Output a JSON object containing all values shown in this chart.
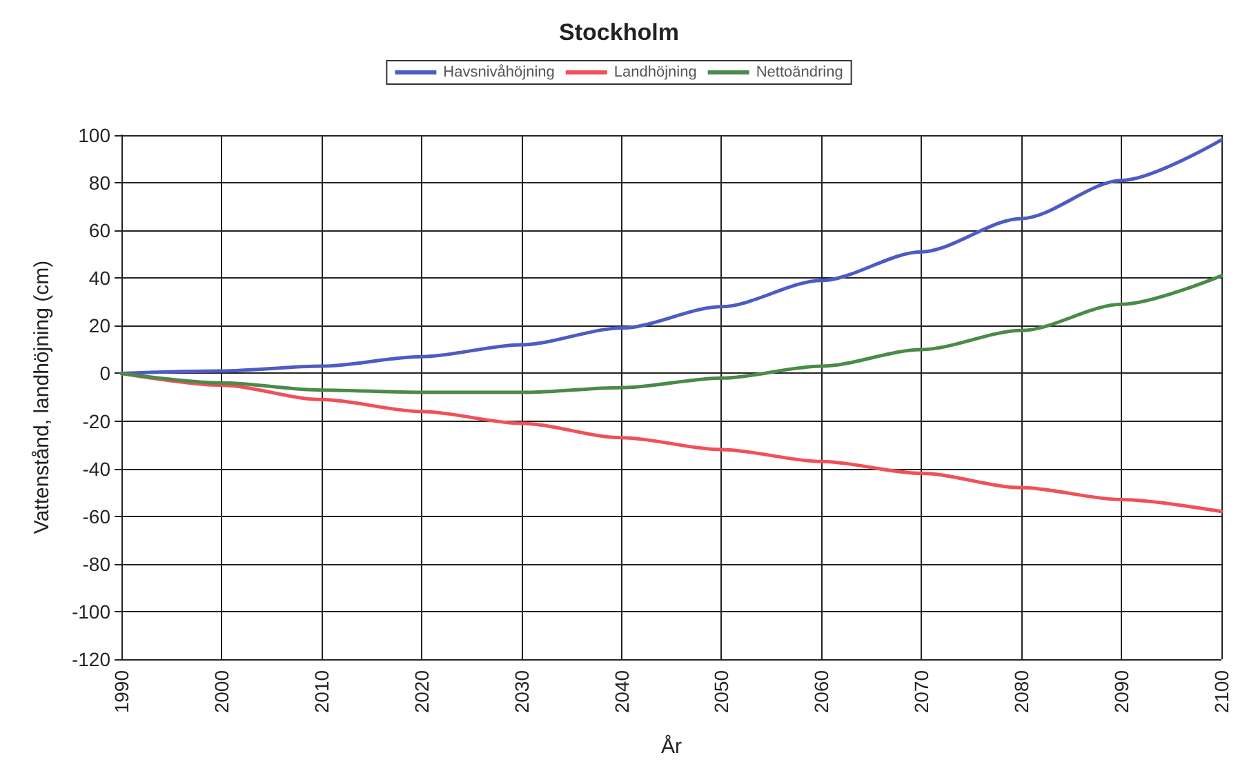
{
  "chart_data": {
    "type": "line",
    "title": "Stockholm",
    "xlabel": "År",
    "ylabel": "Vattenstånd, landhöjning (cm)",
    "x": [
      1990,
      2000,
      2010,
      2020,
      2030,
      2040,
      2050,
      2060,
      2070,
      2080,
      2090,
      2100
    ],
    "series": [
      {
        "name": "Havsnivåhöjning",
        "color": "#4c5cc4",
        "values": [
          0,
          1,
          3,
          7,
          12,
          19,
          28,
          39,
          51,
          65,
          81,
          98
        ]
      },
      {
        "name": "Landhöjning",
        "color": "#f0505a",
        "values": [
          0,
          -5,
          -11,
          -16,
          -21,
          -27,
          -32,
          -37,
          -42,
          -48,
          -53,
          -58
        ]
      },
      {
        "name": "Nettoändring",
        "color": "#4a8a4a",
        "values": [
          0,
          -4,
          -7,
          -8,
          -8,
          -6,
          -2,
          3,
          10,
          18,
          29,
          41
        ]
      }
    ],
    "xlim": [
      1990,
      2100
    ],
    "xticks": [
      1990,
      2000,
      2010,
      2020,
      2030,
      2040,
      2050,
      2060,
      2070,
      2080,
      2090,
      2100
    ],
    "ylim": [
      -120,
      100
    ],
    "yticks": [
      -120,
      -100,
      -80,
      -60,
      -40,
      -20,
      0,
      20,
      40,
      60,
      80,
      100
    ],
    "grid": true,
    "legend": "top",
    "marker": "none",
    "line_style": "solid"
  }
}
